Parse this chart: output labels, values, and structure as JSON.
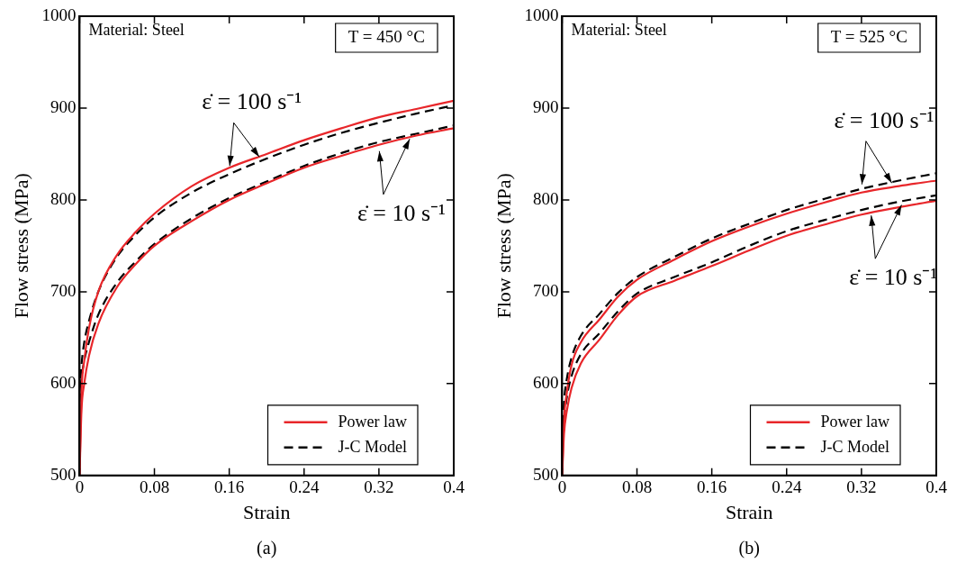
{
  "chart_data": [
    {
      "type": "line",
      "xlabel": "Strain",
      "ylabel": "Flow stress (MPa)",
      "xlim": [
        0,
        0.4
      ],
      "ylim": [
        500,
        1000
      ],
      "xticks": [
        0,
        0.08,
        0.16,
        0.24,
        0.32,
        0.4
      ],
      "yticks": [
        500,
        600,
        700,
        800,
        900,
        1000
      ],
      "grid": false,
      "legend": "bottom right",
      "marker": "none",
      "annotations": [
        "Material: Steel",
        "T = 450 °C",
        {
          "text": "ε̇ = 100 s⁻¹",
          "x": 0.16,
          "y": 832
        },
        {
          "text": "ε̇ = 10 s⁻¹",
          "x": 0.32,
          "y": 858
        },
        "(a)"
      ],
      "series": [
        {
          "name": "Power law",
          "color": "#e8262a",
          "line_style": "solid",
          "x": [
            0,
            0.002,
            0.005,
            0.01,
            0.02,
            0.04,
            0.06,
            0.08,
            0.12,
            0.16,
            0.2,
            0.24,
            0.28,
            0.32,
            0.36,
            0.4
          ],
          "values": [
            500,
            590,
            625,
            660,
            700,
            740,
            765,
            785,
            815,
            835,
            850,
            865,
            878,
            890,
            899,
            908
          ]
        },
        {
          "color": "#e8262a",
          "line_style": "solid",
          "x": [
            0,
            0.002,
            0.005,
            0.01,
            0.02,
            0.04,
            0.06,
            0.08,
            0.12,
            0.16,
            0.2,
            0.24,
            0.28,
            0.32,
            0.36,
            0.4
          ],
          "values": [
            500,
            570,
            600,
            630,
            665,
            705,
            730,
            750,
            777,
            800,
            818,
            835,
            848,
            860,
            870,
            878
          ]
        },
        {
          "name": "J-C Model",
          "color": "#000000",
          "line_style": "dashed",
          "x": [
            0,
            0.002,
            0.005,
            0.01,
            0.02,
            0.04,
            0.06,
            0.08,
            0.12,
            0.16,
            0.2,
            0.24,
            0.28,
            0.32,
            0.36,
            0.4
          ],
          "values": [
            590,
            620,
            645,
            668,
            700,
            738,
            762,
            781,
            808,
            828,
            845,
            860,
            873,
            884,
            894,
            903
          ]
        },
        {
          "color": "#000000",
          "line_style": "dashed",
          "x": [
            0,
            0.002,
            0.005,
            0.01,
            0.02,
            0.04,
            0.06,
            0.08,
            0.12,
            0.16,
            0.2,
            0.24,
            0.28,
            0.32,
            0.36,
            0.4
          ],
          "values": [
            580,
            605,
            625,
            645,
            675,
            710,
            733,
            752,
            780,
            802,
            820,
            837,
            851,
            863,
            872,
            881
          ]
        }
      ]
    },
    {
      "type": "line",
      "xlabel": "Strain",
      "ylabel": "Flow stress (MPa)",
      "xlim": [
        0,
        0.4
      ],
      "ylim": [
        500,
        1000
      ],
      "xticks": [
        0,
        0.08,
        0.16,
        0.24,
        0.32,
        0.4
      ],
      "yticks": [
        500,
        600,
        700,
        800,
        900,
        1000
      ],
      "grid": false,
      "legend": "bottom right",
      "marker": "none",
      "annotations": [
        "Material: Steel",
        "T = 525 °C",
        {
          "text": "ε̇ = 100 s⁻¹",
          "x": 0.32,
          "y": 812
        },
        {
          "text": "ε̇ = 10 s⁻¹",
          "x": 0.33,
          "y": 788
        },
        "(b)"
      ],
      "series": [
        {
          "name": "Power law",
          "color": "#e8262a",
          "line_style": "solid",
          "x": [
            0,
            0.002,
            0.005,
            0.01,
            0.02,
            0.04,
            0.06,
            0.08,
            0.12,
            0.16,
            0.2,
            0.24,
            0.28,
            0.32,
            0.36,
            0.4
          ],
          "values": [
            500,
            560,
            590,
            620,
            645,
            670,
            695,
            713,
            735,
            755,
            771,
            785,
            797,
            808,
            815,
            821
          ]
        },
        {
          "color": "#e8262a",
          "line_style": "solid",
          "x": [
            0,
            0.002,
            0.005,
            0.01,
            0.02,
            0.04,
            0.06,
            0.08,
            0.12,
            0.16,
            0.2,
            0.24,
            0.28,
            0.32,
            0.36,
            0.4
          ],
          "values": [
            500,
            545,
            570,
            595,
            622,
            648,
            675,
            695,
            712,
            728,
            745,
            761,
            773,
            784,
            792,
            799
          ]
        },
        {
          "name": "J-C Model",
          "color": "#000000",
          "line_style": "dashed",
          "x": [
            0,
            0.002,
            0.005,
            0.01,
            0.02,
            0.04,
            0.06,
            0.08,
            0.12,
            0.16,
            0.2,
            0.24,
            0.28,
            0.32,
            0.36,
            0.4
          ],
          "values": [
            540,
            580,
            605,
            628,
            652,
            676,
            699,
            716,
            738,
            758,
            774,
            789,
            801,
            812,
            821,
            829
          ]
        },
        {
          "color": "#000000",
          "line_style": "dashed",
          "x": [
            0,
            0.002,
            0.005,
            0.01,
            0.02,
            0.04,
            0.06,
            0.08,
            0.12,
            0.16,
            0.2,
            0.24,
            0.28,
            0.32,
            0.36,
            0.4
          ],
          "values": [
            530,
            560,
            585,
            608,
            632,
            655,
            679,
            698,
            716,
            732,
            750,
            766,
            778,
            789,
            798,
            805
          ]
        }
      ]
    }
  ]
}
